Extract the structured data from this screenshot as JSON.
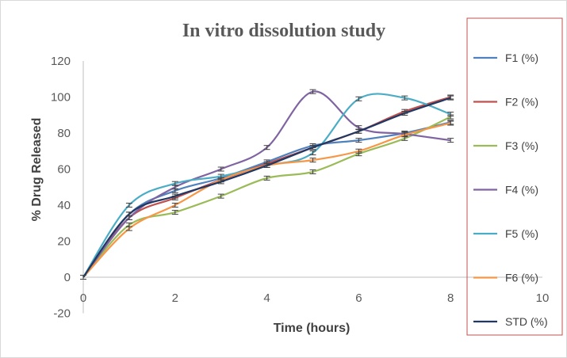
{
  "chart_data": {
    "type": "line",
    "title": "In vitro dissolution study",
    "xlabel": "Time (hours)",
    "ylabel": "% Drug Released",
    "xlim": [
      0,
      10
    ],
    "ylim": [
      -20,
      120
    ],
    "xticks": [
      0,
      2,
      4,
      6,
      8,
      10
    ],
    "yticks": [
      -20,
      0,
      20,
      40,
      60,
      80,
      100,
      120
    ],
    "grid": false,
    "smoothed": true,
    "error_bars": true,
    "legend_placement": "right",
    "legend_border_color": "#c0504d",
    "x": [
      0,
      1,
      2,
      3,
      4,
      5,
      6,
      7,
      8
    ],
    "series": [
      {
        "name": "F1 (%)",
        "color": "#4f81bd",
        "values": [
          0,
          35,
          48,
          55,
          64,
          73,
          76,
          80,
          86
        ]
      },
      {
        "name": "F2 (%)",
        "color": "#c0504d",
        "values": [
          0,
          33,
          44,
          54,
          63,
          72,
          81,
          92,
          100
        ]
      },
      {
        "name": "F3 (%)",
        "color": "#9bbb59",
        "values": [
          0,
          29,
          36,
          45,
          55,
          58.5,
          68.5,
          77,
          89
        ]
      },
      {
        "name": "F4 (%)",
        "color": "#8064a2",
        "values": [
          0,
          33,
          50,
          60,
          72,
          103,
          83,
          79.5,
          76
        ]
      },
      {
        "name": "F5 (%)",
        "color": "#4bacc6",
        "values": [
          0,
          40,
          52,
          56,
          62,
          69,
          99,
          99.5,
          90.5
        ]
      },
      {
        "name": "F6 (%)",
        "color": "#f79646",
        "values": [
          0,
          27,
          40,
          54,
          62,
          65,
          70,
          79,
          85.5
        ]
      },
      {
        "name": "STD (%)",
        "color": "#1f3864",
        "values": [
          0,
          35,
          45,
          53,
          62,
          72,
          81,
          91,
          99.5
        ]
      }
    ]
  }
}
